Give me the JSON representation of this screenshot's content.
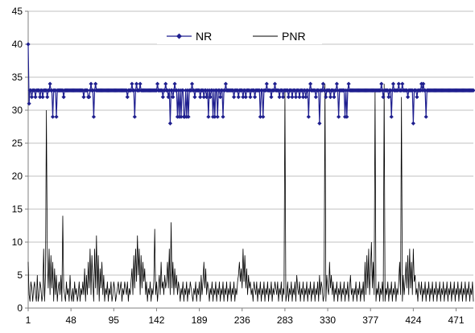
{
  "chart_data": {
    "type": "line",
    "title": "",
    "xlabel": "",
    "ylabel": "",
    "xlim": [
      1,
      490
    ],
    "ylim": [
      0,
      45
    ],
    "y_ticks": [
      0,
      5,
      10,
      15,
      20,
      25,
      30,
      35,
      40,
      45
    ],
    "x_ticks": [
      1,
      48,
      95,
      142,
      189,
      236,
      283,
      330,
      377,
      424,
      471
    ],
    "grid": "horizontal",
    "legend": {
      "position": "top-center",
      "entries": [
        "NR",
        "PNR"
      ]
    },
    "colors": {
      "NR": "#1f1f8f",
      "PNR": "#000000",
      "grid": "#c0c0c0",
      "axis": "#808080"
    },
    "series": [
      {
        "name": "NR",
        "baseline": 33,
        "deviations": [
          [
            1,
            40
          ],
          [
            2,
            31
          ],
          [
            3,
            33
          ],
          [
            5,
            32
          ],
          [
            9,
            32
          ],
          [
            14,
            32
          ],
          [
            17,
            32
          ],
          [
            19,
            33
          ],
          [
            22,
            32
          ],
          [
            25,
            34
          ],
          [
            28,
            29
          ],
          [
            32,
            29
          ],
          [
            40,
            32
          ],
          [
            52,
            33
          ],
          [
            62,
            32
          ],
          [
            67,
            32
          ],
          [
            68,
            32
          ],
          [
            70,
            34
          ],
          [
            73,
            29
          ],
          [
            75,
            34
          ],
          [
            110,
            32
          ],
          [
            115,
            34
          ],
          [
            118,
            29
          ],
          [
            120,
            34
          ],
          [
            124,
            34
          ],
          [
            143,
            34
          ],
          [
            149,
            32
          ],
          [
            152,
            34
          ],
          [
            155,
            32
          ],
          [
            157,
            28
          ],
          [
            160,
            32
          ],
          [
            162,
            34
          ],
          [
            165,
            29
          ],
          [
            167,
            29
          ],
          [
            169,
            29
          ],
          [
            172,
            29
          ],
          [
            173,
            29
          ],
          [
            175,
            29
          ],
          [
            177,
            29
          ],
          [
            181,
            34
          ],
          [
            184,
            32
          ],
          [
            190,
            32
          ],
          [
            194,
            32
          ],
          [
            197,
            32
          ],
          [
            199,
            29
          ],
          [
            201,
            32
          ],
          [
            204,
            29
          ],
          [
            206,
            29
          ],
          [
            209,
            29
          ],
          [
            212,
            32
          ],
          [
            215,
            29
          ],
          [
            218,
            34
          ],
          [
            227,
            32
          ],
          [
            232,
            32
          ],
          [
            237,
            32
          ],
          [
            240,
            32
          ],
          [
            245,
            32
          ],
          [
            250,
            32
          ],
          [
            256,
            29
          ],
          [
            259,
            29
          ],
          [
            263,
            34
          ],
          [
            268,
            32
          ],
          [
            272,
            34
          ],
          [
            277,
            32
          ],
          [
            281,
            32
          ],
          [
            287,
            32
          ],
          [
            291,
            32
          ],
          [
            295,
            32
          ],
          [
            299,
            32
          ],
          [
            303,
            32
          ],
          [
            306,
            32
          ],
          [
            309,
            29
          ],
          [
            311,
            34
          ],
          [
            317,
            32
          ],
          [
            321,
            28
          ],
          [
            325,
            34
          ],
          [
            328,
            32
          ],
          [
            333,
            32
          ],
          [
            337,
            32
          ],
          [
            340,
            34
          ],
          [
            342,
            29
          ],
          [
            349,
            29
          ],
          [
            351,
            29
          ],
          [
            353,
            34
          ],
          [
            389,
            34
          ],
          [
            391,
            32
          ],
          [
            397,
            32
          ],
          [
            400,
            29
          ],
          [
            402,
            34
          ],
          [
            408,
            34
          ],
          [
            412,
            34
          ],
          [
            418,
            32
          ],
          [
            424,
            28
          ],
          [
            428,
            32
          ],
          [
            433,
            34
          ],
          [
            435,
            34
          ],
          [
            438,
            29
          ],
          [
            450,
            33
          ],
          [
            465,
            33
          ],
          [
            480,
            33
          ],
          [
            489,
            33
          ]
        ]
      },
      {
        "name": "PNR",
        "values": [
          7,
          2,
          1,
          4,
          3,
          1,
          3,
          4,
          2,
          1,
          5,
          1,
          2,
          4,
          3,
          1,
          2,
          9,
          1,
          5,
          30,
          8,
          3,
          9,
          2,
          8,
          3,
          7,
          1,
          6,
          2,
          5,
          1,
          3,
          4,
          2,
          5,
          1,
          14,
          3,
          2,
          1,
          4,
          2,
          3,
          1,
          5,
          2,
          1,
          3,
          1,
          4,
          2,
          3,
          1,
          2,
          4,
          1,
          3,
          2,
          4,
          2,
          6,
          1,
          5,
          2,
          7,
          3,
          9,
          2,
          8,
          4,
          1,
          9,
          3,
          11,
          2,
          8,
          1,
          6,
          3,
          7,
          2,
          5,
          1,
          3,
          2,
          4,
          1,
          3,
          2,
          4,
          1,
          2,
          4,
          3,
          1,
          2,
          3,
          4,
          2,
          3,
          4,
          1,
          3,
          2,
          4,
          3,
          2,
          4,
          1,
          3,
          2,
          4,
          6,
          2,
          8,
          3,
          9,
          4,
          11,
          5,
          9,
          2,
          8,
          3,
          7,
          4,
          6,
          2,
          4,
          1,
          3,
          2,
          4,
          1,
          3,
          2,
          4,
          12,
          2,
          4,
          1,
          3,
          5,
          2,
          7,
          3,
          4,
          2,
          5,
          3,
          4,
          7,
          3,
          9,
          2,
          13,
          3,
          7,
          2,
          6,
          3,
          5,
          2,
          4,
          3,
          1,
          3,
          2,
          4,
          1,
          3,
          2,
          4,
          1,
          3,
          2,
          4,
          3,
          2,
          1,
          3,
          2,
          4,
          1,
          3,
          2,
          4,
          1,
          5,
          2,
          4,
          7,
          3,
          6,
          2,
          4,
          3,
          1,
          3,
          2,
          4,
          1,
          3,
          2,
          4,
          1,
          3,
          2,
          4,
          1,
          3,
          2,
          4,
          1,
          3,
          2,
          4,
          1,
          3,
          2,
          4,
          1,
          3,
          2,
          4,
          1,
          3,
          2,
          4,
          5,
          7,
          4,
          6,
          3,
          9,
          4,
          8,
          3,
          6,
          2,
          5,
          3,
          4,
          2,
          3,
          1,
          4,
          3,
          2,
          4,
          1,
          3,
          2,
          4,
          1,
          3,
          2,
          4,
          1,
          3,
          2,
          4,
          1,
          3,
          2,
          4,
          1,
          3,
          2,
          4,
          3,
          2,
          4,
          1,
          3,
          2,
          4,
          1,
          3,
          2,
          33,
          1,
          2,
          4,
          1,
          3,
          2,
          4,
          1,
          3,
          2,
          4,
          1,
          5,
          3,
          2,
          4,
          1,
          3,
          2,
          4,
          1,
          3,
          2,
          4,
          1,
          3,
          2,
          4,
          1,
          3,
          2,
          4,
          1,
          3,
          2,
          4,
          1,
          5,
          2,
          4,
          3,
          1,
          2,
          34,
          1,
          5,
          3,
          2,
          7,
          3,
          5,
          2,
          4,
          1,
          3,
          2,
          4,
          1,
          3,
          2,
          4,
          1,
          3,
          2,
          4,
          1,
          3,
          2,
          4,
          1,
          3,
          5,
          2,
          3,
          1,
          3,
          2,
          4,
          1,
          3,
          2,
          4,
          1,
          3,
          2,
          4,
          1,
          7,
          2,
          8,
          3,
          9,
          2,
          6,
          10,
          3,
          7,
          2,
          33,
          1,
          3,
          2,
          4,
          1,
          3,
          2,
          4,
          1,
          34,
          1,
          3,
          2,
          4,
          1,
          3,
          2,
          4,
          1,
          3,
          2,
          4,
          1,
          3,
          2,
          4,
          7,
          2,
          32,
          1,
          5,
          2,
          4,
          7,
          3,
          8,
          2,
          9,
          3,
          7,
          2,
          9,
          4,
          5,
          2,
          3,
          1,
          4,
          3,
          2,
          4,
          1,
          3,
          2,
          4,
          1,
          3,
          2,
          4,
          1,
          3,
          2,
          4,
          1,
          3,
          2,
          4,
          1,
          3,
          2,
          4,
          1,
          3,
          2,
          4,
          1,
          3,
          2,
          4,
          1,
          3,
          2,
          4,
          1,
          3,
          2,
          4,
          1,
          3,
          2,
          4,
          1,
          3,
          2,
          4,
          1,
          3,
          2,
          4,
          1,
          3,
          2,
          4,
          1,
          3,
          2,
          4,
          1
        ]
      }
    ]
  }
}
